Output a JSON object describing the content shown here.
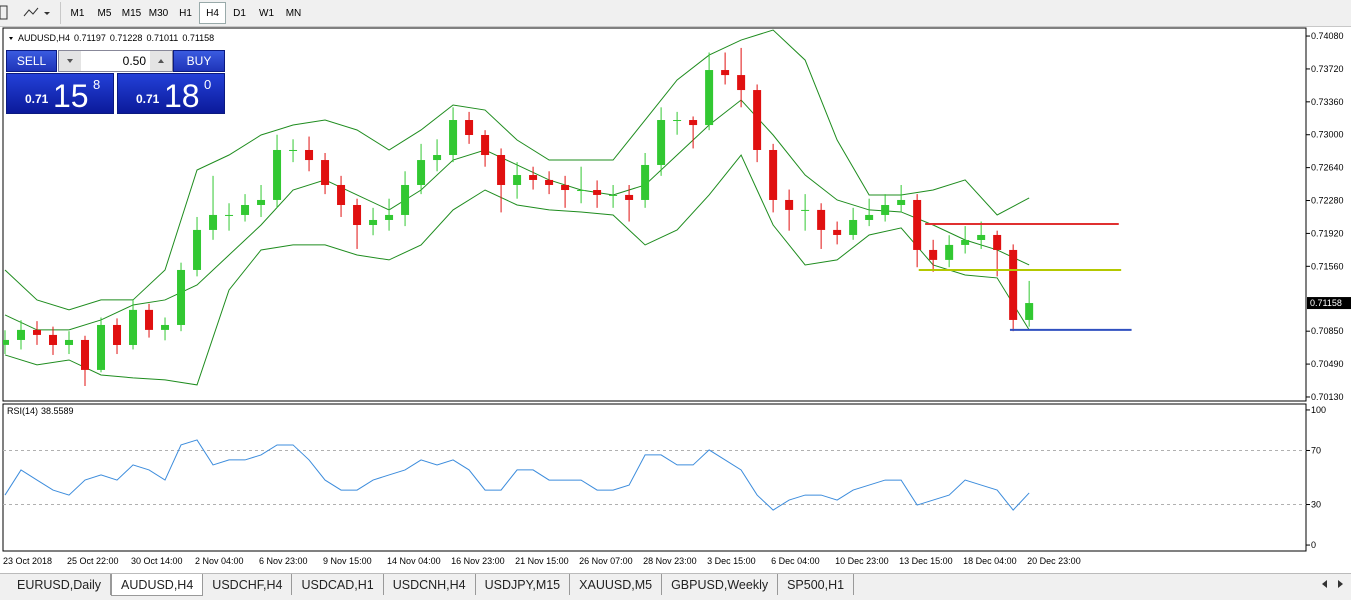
{
  "toolbar": {
    "timeframes": [
      {
        "label": "M1"
      },
      {
        "label": "M5"
      },
      {
        "label": "M15"
      },
      {
        "label": "M30"
      },
      {
        "label": "H1"
      },
      {
        "label": "H4",
        "selected": true
      },
      {
        "label": "D1"
      },
      {
        "label": "W1"
      },
      {
        "label": "MN"
      }
    ]
  },
  "trade_panel": {
    "sell": "SELL",
    "buy": "BUY",
    "lot": "0.50",
    "bid": {
      "prefix": "0.71",
      "big": "15",
      "small": "8"
    },
    "ask": {
      "prefix": "0.71",
      "big": "18",
      "small": "0"
    }
  },
  "tabs": [
    {
      "label": "EURUSD,Daily"
    },
    {
      "label": "AUDUSD,H4",
      "selected": true
    },
    {
      "label": "USDCHF,H4"
    },
    {
      "label": "USDCAD,H1"
    },
    {
      "label": "USDCNH,H4"
    },
    {
      "label": "USDJPY,M15"
    },
    {
      "label": "XAUUSD,M5"
    },
    {
      "label": "GBPUSD,Weekly"
    },
    {
      "label": "SP500,H1"
    }
  ],
  "chart_data": [
    {
      "type": "candlestick",
      "symbol": "AUDUSD,H4",
      "ohlc": [
        0.71197,
        0.71228,
        0.71011,
        0.71158
      ],
      "categories": [
        "23 Oct 2018",
        null,
        null,
        null,
        "25 Oct 22:00",
        null,
        null,
        null,
        "30 Oct 14:00",
        null,
        null,
        null,
        "2 Nov 04:00",
        null,
        null,
        null,
        "6 Nov 23:00",
        null,
        null,
        null,
        "9 Nov 15:00",
        null,
        null,
        null,
        "14 Nov 04:00",
        null,
        null,
        null,
        "16 Nov 23:00",
        null,
        null,
        null,
        "21 Nov 15:00",
        null,
        null,
        null,
        "26 Nov 07:00",
        null,
        null,
        null,
        "28 Nov 23:00",
        null,
        null,
        null,
        "3 Dec 15:00",
        null,
        null,
        null,
        "6 Dec 04:00",
        null,
        null,
        null,
        "10 Dec 23:00",
        null,
        null,
        null,
        "13 Dec 15:00",
        null,
        null,
        null,
        "18 Dec 04:00",
        null,
        null,
        null,
        "20 Dec 23:00"
      ],
      "open": [
        0.707,
        0.70754,
        0.70864,
        0.70809,
        0.70699,
        0.70754,
        0.70426,
        0.70918,
        0.70699,
        0.71083,
        0.70864,
        0.70918,
        0.7152,
        0.71958,
        0.72122,
        0.72122,
        0.72231,
        0.72286,
        0.72833,
        0.72833,
        0.72723,
        0.7245,
        0.72231,
        0.72012,
        0.72067,
        0.72122,
        0.7245,
        0.72723,
        0.72778,
        0.73161,
        0.72997,
        0.72778,
        0.7245,
        0.72559,
        0.72505,
        0.7245,
        0.72395,
        0.72395,
        0.72341,
        0.72341,
        0.72286,
        0.72669,
        0.73161,
        0.73161,
        0.73106,
        0.73708,
        0.73653,
        0.73489,
        0.72833,
        0.72286,
        0.72177,
        0.72177,
        0.71958,
        0.71903,
        0.72067,
        0.72122,
        0.72231,
        0.72286,
        0.71739,
        0.7163,
        0.71794,
        0.71848,
        0.71903,
        0.71739,
        0.70973
      ],
      "high": [
        0.7086,
        0.7097,
        0.7096,
        0.709,
        0.7085,
        0.708,
        0.71,
        0.7099,
        0.712,
        0.7115,
        0.71,
        0.716,
        0.721,
        0.7255,
        0.7225,
        0.7235,
        0.7245,
        0.73,
        0.7295,
        0.7298,
        0.728,
        0.7255,
        0.723,
        0.722,
        0.723,
        0.726,
        0.729,
        0.7295,
        0.733,
        0.7325,
        0.7305,
        0.7285,
        0.727,
        0.7265,
        0.726,
        0.7255,
        0.7265,
        0.725,
        0.7245,
        0.7245,
        0.728,
        0.733,
        0.7325,
        0.732,
        0.739,
        0.739,
        0.7395,
        0.7355,
        0.729,
        0.724,
        0.7235,
        0.7225,
        0.7205,
        0.722,
        0.723,
        0.7235,
        0.7245,
        0.7235,
        0.7185,
        0.719,
        0.72,
        0.7205,
        0.7195,
        0.718,
        0.714
      ],
      "low": [
        0.706,
        0.7065,
        0.707,
        0.7059,
        0.706,
        0.7025,
        0.704,
        0.706,
        0.7065,
        0.7078,
        0.7075,
        0.7085,
        0.7145,
        0.7185,
        0.7195,
        0.7205,
        0.721,
        0.722,
        0.727,
        0.726,
        0.7235,
        0.721,
        0.7175,
        0.719,
        0.7195,
        0.72,
        0.7235,
        0.726,
        0.727,
        0.729,
        0.7265,
        0.7215,
        0.723,
        0.724,
        0.7235,
        0.722,
        0.7225,
        0.722,
        0.722,
        0.7205,
        0.722,
        0.7255,
        0.73,
        0.7285,
        0.7305,
        0.7355,
        0.733,
        0.727,
        0.7215,
        0.7195,
        0.7195,
        0.7175,
        0.718,
        0.7185,
        0.72,
        0.7205,
        0.7215,
        0.7155,
        0.715,
        0.7155,
        0.717,
        0.7175,
        0.7145,
        0.7085,
        0.709
      ],
      "close": [
        0.70754,
        0.70864,
        0.70809,
        0.70699,
        0.70754,
        0.70426,
        0.70918,
        0.70699,
        0.71083,
        0.70864,
        0.70918,
        0.7152,
        0.71958,
        0.72122,
        0.72122,
        0.72231,
        0.72286,
        0.72833,
        0.72833,
        0.72723,
        0.7245,
        0.72231,
        0.72012,
        0.72067,
        0.72122,
        0.7245,
        0.72723,
        0.72778,
        0.73161,
        0.72997,
        0.72778,
        0.7245,
        0.72559,
        0.72505,
        0.7245,
        0.72395,
        0.72395,
        0.72341,
        0.72341,
        0.72286,
        0.72669,
        0.73161,
        0.73161,
        0.73106,
        0.73708,
        0.73653,
        0.73489,
        0.72833,
        0.72286,
        0.72177,
        0.72177,
        0.71958,
        0.71903,
        0.72067,
        0.72122,
        0.72231,
        0.72286,
        0.71739,
        0.7163,
        0.71794,
        0.71848,
        0.71903,
        0.71739,
        0.70973,
        0.71158
      ],
      "up_color": "#32c832",
      "down_color": "#e01010",
      "xlim": [
        -0.125,
        81.3
      ],
      "ylim": [
        0.70086,
        0.74168
      ],
      "yticks": [
        {
          "value": 0.7408,
          "label": "0.74080"
        },
        {
          "value": 0.7372,
          "label": "0.73720"
        },
        {
          "value": 0.7336,
          "label": "0.73360"
        },
        {
          "value": 0.73,
          "label": "0.73000"
        },
        {
          "value": 0.7264,
          "label": "0.72640"
        },
        {
          "value": 0.7228,
          "label": "0.72280"
        },
        {
          "value": 0.7192,
          "label": "0.71920"
        },
        {
          "value": 0.7156,
          "label": "0.71560"
        },
        {
          "value": 0.7085,
          "label": "0.70850"
        },
        {
          "value": 0.7049,
          "label": "0.70490"
        },
        {
          "value": 0.7013,
          "label": "0.70130"
        }
      ],
      "bands": {
        "color": "#1e8c1e",
        "x": [
          0,
          2,
          4,
          6,
          8,
          10,
          12,
          14,
          16,
          18,
          20,
          22,
          24,
          26,
          28,
          30,
          32,
          34,
          36,
          38,
          40,
          42,
          44,
          46,
          48,
          50,
          52,
          54,
          56,
          58,
          60,
          62,
          64
        ],
        "upper": [
          0.7152,
          0.71192,
          0.71083,
          0.71192,
          0.71192,
          0.7152,
          0.72614,
          0.72778,
          0.72997,
          0.73106,
          0.73161,
          0.73052,
          0.72833,
          0.73052,
          0.73325,
          0.7327,
          0.72942,
          0.72723,
          0.72723,
          0.72723,
          0.73161,
          0.73599,
          0.73872,
          0.74036,
          0.74146,
          0.73817,
          0.72942,
          0.72341,
          0.72341,
          0.72395,
          0.72505,
          0.72122,
          0.72308
        ],
        "middle": [
          0.71028,
          0.70864,
          0.70864,
          0.70973,
          0.71137,
          0.71192,
          0.71356,
          0.71684,
          0.72012,
          0.72395,
          0.72505,
          0.72341,
          0.72177,
          0.72395,
          0.72723,
          0.72833,
          0.72669,
          0.72505,
          0.72395,
          0.72341,
          0.7245,
          0.72778,
          0.73106,
          0.7338,
          0.72997,
          0.72559,
          0.72286,
          0.72177,
          0.72155,
          0.72012,
          0.71848,
          0.71739,
          0.71575
        ],
        "lower": [
          0.7059,
          0.70481,
          0.70535,
          0.70371,
          0.70339,
          0.70317,
          0.70262,
          0.71301,
          0.71739,
          0.71794,
          0.71794,
          0.71684,
          0.7163,
          0.71794,
          0.72177,
          0.72395,
          0.72231,
          0.72177,
          0.72155,
          0.72122,
          0.71794,
          0.71958,
          0.72341,
          0.72778,
          0.72012,
          0.71575,
          0.7163,
          0.71903,
          0.7198,
          0.71575,
          0.71465,
          0.71433,
          0.70864
        ]
      },
      "levels": [
        {
          "value": 0.72023,
          "color": "#e03030",
          "from": 57.5,
          "to": 69.6
        },
        {
          "value": 0.7152,
          "color": "#b4c800",
          "from": 57.1,
          "to": 69.75
        },
        {
          "value": 0.70864,
          "color": "#3050c0",
          "from": 62.8,
          "to": 70.4
        }
      ]
    },
    {
      "type": "line",
      "name": "RSI(14)",
      "color": "#3c8cdc",
      "values": [
        37.0,
        55.6,
        48.1,
        40.7,
        37.0,
        48.1,
        51.9,
        48.1,
        59.3,
        55.6,
        48.1,
        74.1,
        77.8,
        59.3,
        63.0,
        63.0,
        66.7,
        74.1,
        74.1,
        63.0,
        48.1,
        40.7,
        40.7,
        48.1,
        51.9,
        55.6,
        63.0,
        59.3,
        63.0,
        55.6,
        40.7,
        40.7,
        55.6,
        55.6,
        48.1,
        48.1,
        48.1,
        40.7,
        40.7,
        44.4,
        66.7,
        66.7,
        59.3,
        59.3,
        70.4,
        63.0,
        55.6,
        37.0,
        25.9,
        33.3,
        37.0,
        37.0,
        33.3,
        40.7,
        44.4,
        48.1,
        48.1,
        29.6,
        33.3,
        37.0,
        48.1,
        44.4,
        40.7,
        25.9,
        38.5589
      ],
      "xlim": [
        -0.125,
        81.3
      ],
      "ylim": [
        -4.4,
        104.4
      ],
      "yticks": [
        100,
        70,
        30,
        0
      ],
      "levels": [
        70,
        30
      ]
    }
  ]
}
